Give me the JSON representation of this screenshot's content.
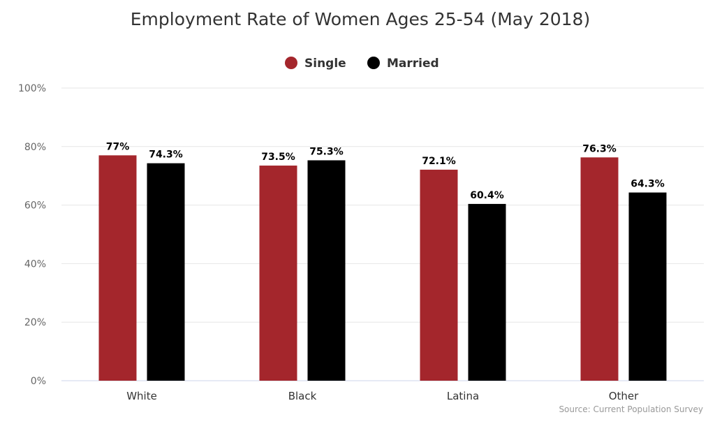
{
  "chart_data": {
    "type": "bar",
    "title": "Employment Rate of Women Ages 25-54 (May 2018)",
    "categories": [
      "White",
      "Black",
      "Latina",
      "Other"
    ],
    "series": [
      {
        "name": "Single",
        "color": "#a4262c",
        "values": [
          77,
          73.5,
          72.1,
          76.3
        ],
        "labels": [
          "77%",
          "73.5%",
          "72.1%",
          "76.3%"
        ]
      },
      {
        "name": "Married",
        "color": "#000000",
        "values": [
          74.3,
          75.3,
          60.4,
          64.3
        ],
        "labels": [
          "74.3%",
          "75.3%",
          "60.4%",
          "64.3%"
        ]
      }
    ],
    "ylim": [
      0,
      100
    ],
    "yticks": [
      0,
      20,
      40,
      60,
      80,
      100
    ],
    "ytick_labels": [
      "0%",
      "20%",
      "40%",
      "60%",
      "80%",
      "100%"
    ],
    "grid": true,
    "legend_position": "top-center",
    "xlabel": "",
    "ylabel": "",
    "source": "Source: Current Population Survey"
  }
}
